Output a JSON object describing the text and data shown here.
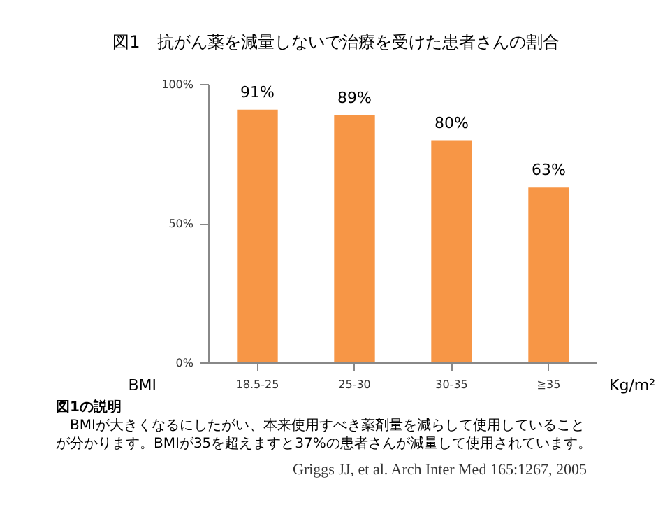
{
  "chart_data": {
    "type": "bar",
    "title": "図1　抗がん薬を減量しないで治療を受けた患者さんの割合",
    "xlabel": "BMI",
    "categories": [
      "18.5-25",
      "25-30",
      "30-35",
      "≧35"
    ],
    "values": [
      91,
      89,
      80,
      63
    ],
    "value_labels": [
      "91%",
      "89%",
      "80%",
      "63%"
    ],
    "color": "#f79646",
    "ylim": [
      0,
      100
    ],
    "yticks": [
      {
        "value": 0,
        "label": "0%"
      },
      {
        "value": 50,
        "label": "50%"
      },
      {
        "value": 100,
        "label": "100%"
      }
    ],
    "annotations": [
      "Kg/m²",
      "図1の説明",
      "　BMIが大きくなるにしたがい、本来使用すべき薬剤量を減らして使用していること",
      "が分かります。BMIが35を超えますと37%の患者さんが減量して使用されています。",
      "Griggs JJ, et al. Arch Inter Med 165:1267, 2005"
    ]
  }
}
